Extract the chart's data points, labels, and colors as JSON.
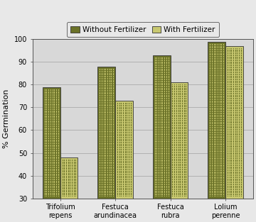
{
  "categories": [
    "Trifolium\nrepens",
    "Festuca\narundinacea",
    "Festuca\nrubra",
    "Lolium\nperenne"
  ],
  "without_fertilizer": [
    79,
    88,
    93,
    99
  ],
  "with_fertilizer": [
    48,
    73,
    81,
    97
  ],
  "color_without": "#6b7228",
  "color_with": "#c8c870",
  "ylabel": "% Germination",
  "ylim_min": 30,
  "ylim_max": 100,
  "yticks": [
    30,
    40,
    50,
    60,
    70,
    80,
    90,
    100
  ],
  "legend_without": "Without Fertilizer",
  "legend_with": "With Fertilizer",
  "bar_width": 0.32,
  "background_color": "#e8e8e8",
  "plot_bg_color": "#d8d8d8",
  "grid_color": "#b0b0b0",
  "axis_fontsize": 8,
  "tick_fontsize": 7,
  "legend_fontsize": 7.5
}
